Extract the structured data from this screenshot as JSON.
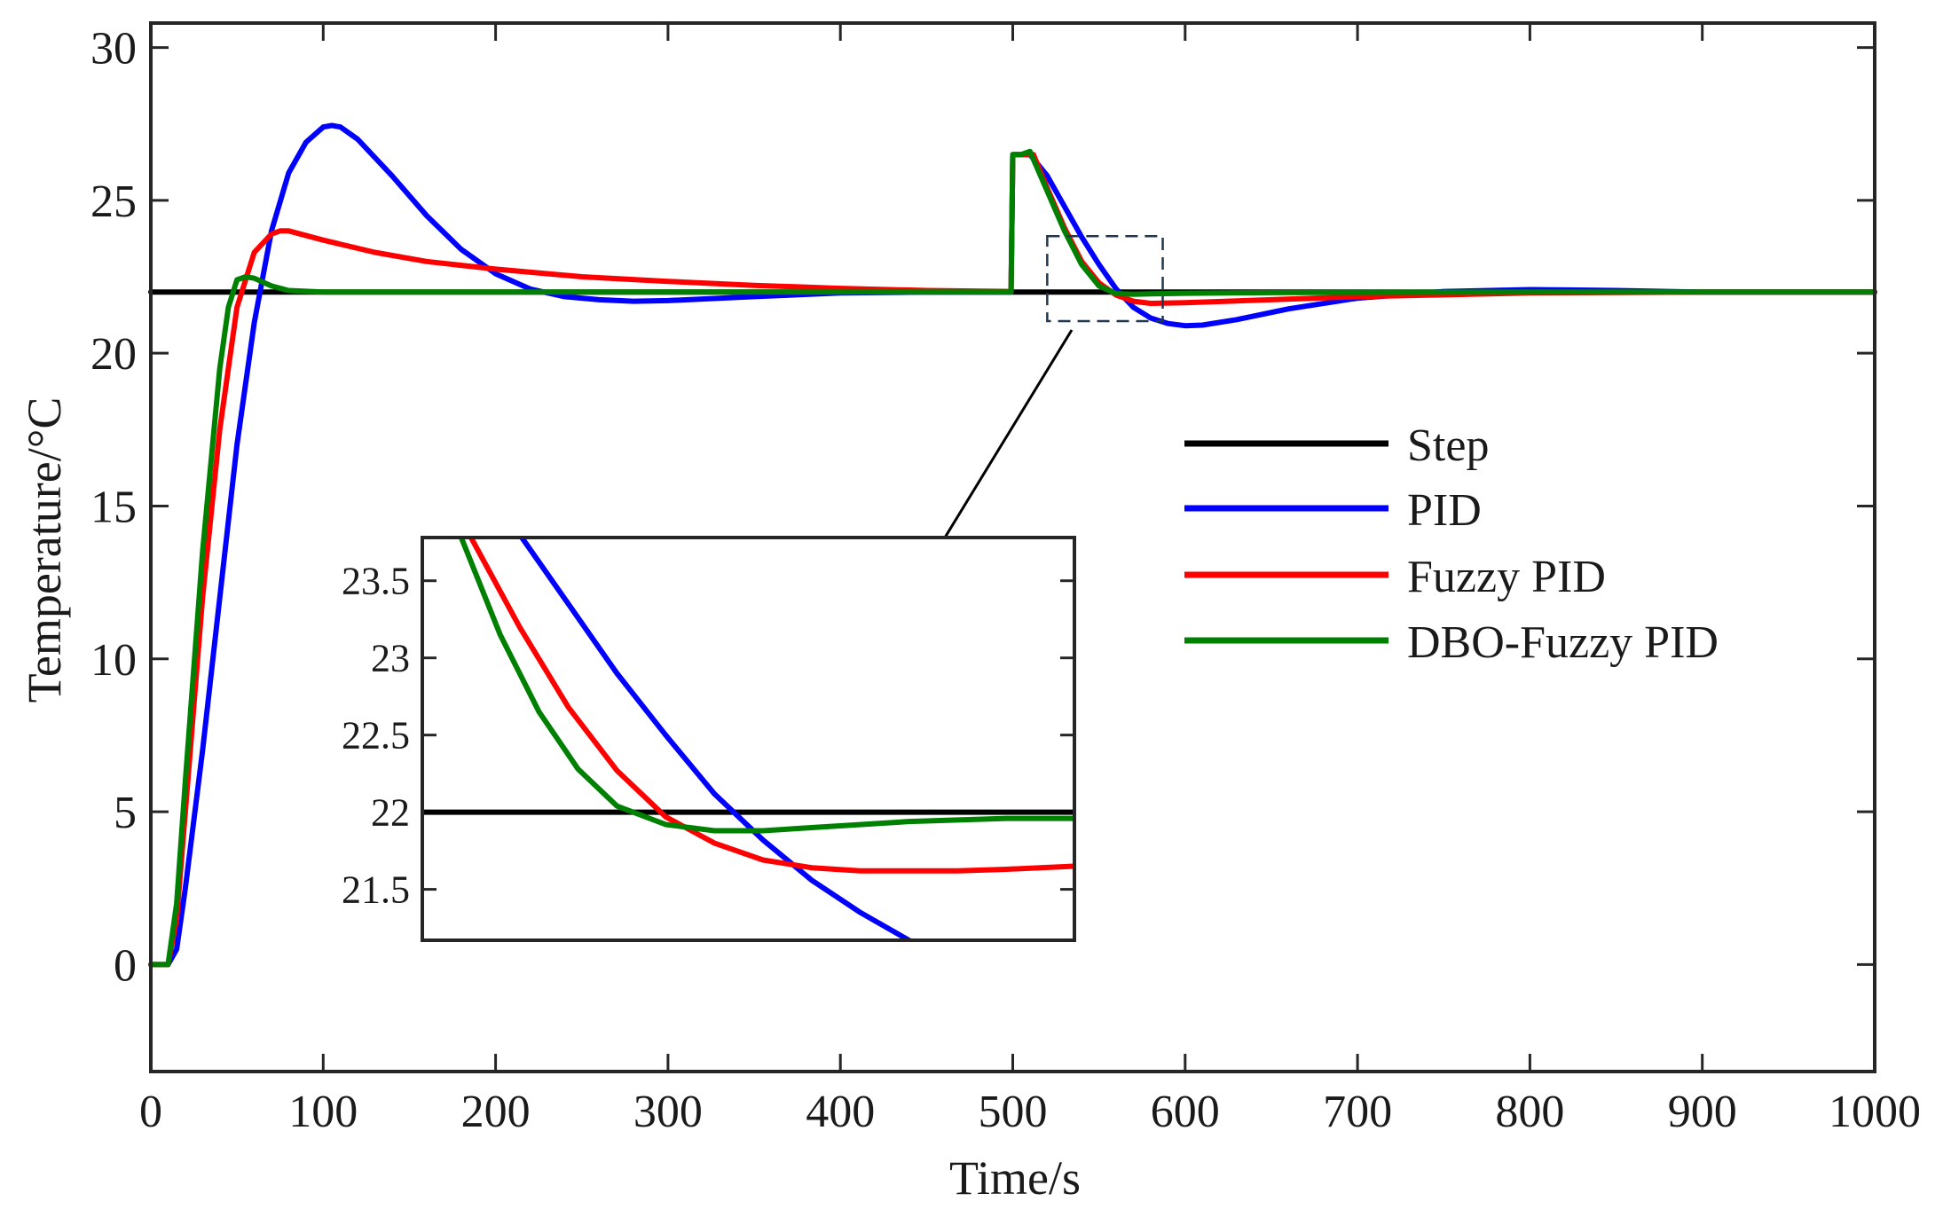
{
  "chart_data": {
    "type": "line",
    "xlabel": "Time/s",
    "ylabel": "Temperature/°C",
    "xlim": [
      0,
      1000
    ],
    "ylim": [
      -3.5,
      30.8
    ],
    "xticks": [
      0,
      100,
      200,
      300,
      400,
      500,
      600,
      700,
      800,
      900,
      1000
    ],
    "yticks": [
      0,
      5,
      10,
      15,
      20,
      25,
      30
    ],
    "legend_position": "center-right",
    "series": [
      {
        "name": "Step",
        "color": "#000000",
        "points": [
          [
            0,
            22
          ],
          [
            1000,
            22
          ]
        ]
      },
      {
        "name": "PID",
        "color": "#0000ff",
        "points": [
          [
            0,
            0
          ],
          [
            10,
            0
          ],
          [
            15,
            0.5
          ],
          [
            20,
            2.5
          ],
          [
            30,
            7
          ],
          [
            40,
            12
          ],
          [
            50,
            17
          ],
          [
            60,
            21
          ],
          [
            70,
            24
          ],
          [
            80,
            25.9
          ],
          [
            90,
            26.9
          ],
          [
            100,
            27.4
          ],
          [
            105,
            27.45
          ],
          [
            110,
            27.4
          ],
          [
            120,
            27
          ],
          [
            140,
            25.8
          ],
          [
            160,
            24.5
          ],
          [
            180,
            23.4
          ],
          [
            200,
            22.6
          ],
          [
            220,
            22.1
          ],
          [
            240,
            21.85
          ],
          [
            260,
            21.75
          ],
          [
            280,
            21.7
          ],
          [
            300,
            21.72
          ],
          [
            350,
            21.85
          ],
          [
            400,
            21.97
          ],
          [
            450,
            22
          ],
          [
            499,
            22
          ],
          [
            500,
            26.5
          ],
          [
            510,
            26.5
          ],
          [
            520,
            25.8
          ],
          [
            530,
            24.8
          ],
          [
            540,
            23.8
          ],
          [
            550,
            22.9
          ],
          [
            560,
            22.1
          ],
          [
            570,
            21.5
          ],
          [
            580,
            21.15
          ],
          [
            590,
            20.97
          ],
          [
            600,
            20.9
          ],
          [
            610,
            20.92
          ],
          [
            630,
            21.1
          ],
          [
            660,
            21.45
          ],
          [
            700,
            21.8
          ],
          [
            750,
            22.02
          ],
          [
            800,
            22.08
          ],
          [
            850,
            22.05
          ],
          [
            900,
            22
          ],
          [
            1000,
            22
          ]
        ]
      },
      {
        "name": "Fuzzy PID",
        "color": "#ff0000",
        "points": [
          [
            0,
            0
          ],
          [
            10,
            0
          ],
          [
            15,
            1.5
          ],
          [
            20,
            5
          ],
          [
            30,
            12
          ],
          [
            40,
            17.5
          ],
          [
            50,
            21.5
          ],
          [
            60,
            23.3
          ],
          [
            70,
            23.9
          ],
          [
            75,
            24
          ],
          [
            80,
            24
          ],
          [
            100,
            23.7
          ],
          [
            130,
            23.3
          ],
          [
            160,
            23
          ],
          [
            200,
            22.75
          ],
          [
            250,
            22.5
          ],
          [
            300,
            22.35
          ],
          [
            350,
            22.22
          ],
          [
            400,
            22.12
          ],
          [
            450,
            22.05
          ],
          [
            499,
            22.02
          ],
          [
            500,
            26.5
          ],
          [
            512,
            26.5
          ],
          [
            520,
            25.4
          ],
          [
            530,
            24.1
          ],
          [
            540,
            23
          ],
          [
            550,
            22.3
          ],
          [
            560,
            21.9
          ],
          [
            570,
            21.7
          ],
          [
            580,
            21.63
          ],
          [
            600,
            21.65
          ],
          [
            650,
            21.75
          ],
          [
            700,
            21.85
          ],
          [
            800,
            21.97
          ],
          [
            900,
            22
          ],
          [
            1000,
            22
          ]
        ]
      },
      {
        "name": "DBO-Fuzzy PID",
        "color": "#008000",
        "points": [
          [
            0,
            0
          ],
          [
            10,
            0
          ],
          [
            15,
            2
          ],
          [
            20,
            6
          ],
          [
            30,
            13.5
          ],
          [
            40,
            19.5
          ],
          [
            45,
            21.5
          ],
          [
            50,
            22.4
          ],
          [
            55,
            22.5
          ],
          [
            60,
            22.45
          ],
          [
            70,
            22.2
          ],
          [
            80,
            22.05
          ],
          [
            100,
            22
          ],
          [
            200,
            22
          ],
          [
            300,
            22
          ],
          [
            400,
            22
          ],
          [
            499,
            22
          ],
          [
            500,
            26.5
          ],
          [
            505,
            26.5
          ],
          [
            510,
            26.6
          ],
          [
            520,
            25.3
          ],
          [
            530,
            24
          ],
          [
            540,
            22.9
          ],
          [
            550,
            22.2
          ],
          [
            560,
            21.95
          ],
          [
            570,
            21.93
          ],
          [
            580,
            21.94
          ],
          [
            600,
            21.96
          ],
          [
            650,
            21.98
          ],
          [
            700,
            21.99
          ],
          [
            800,
            22
          ],
          [
            1000,
            22
          ]
        ]
      }
    ],
    "inset": {
      "xlim": [
        520,
        587
      ],
      "ylim": [
        21.17,
        23.78
      ],
      "yticks": [
        21.5,
        22,
        22.5,
        23,
        23.5
      ],
      "ytick_labels": [
        "21.5",
        "22",
        "22.5",
        "23",
        "23.5"
      ],
      "series": [
        {
          "name": "Step",
          "color": "#000000",
          "points": [
            [
              520,
              22
            ],
            [
              587,
              22
            ]
          ]
        },
        {
          "name": "PID",
          "color": "#0000ff",
          "points": [
            [
              530,
              23.8
            ],
            [
              535,
              23.35
            ],
            [
              540,
              22.9
            ],
            [
              545,
              22.5
            ],
            [
              550,
              22.12
            ],
            [
              555,
              21.82
            ],
            [
              560,
              21.56
            ],
            [
              565,
              21.35
            ],
            [
              570,
              21.17
            ]
          ]
        },
        {
          "name": "Fuzzy PID",
          "color": "#ff0000",
          "points": [
            [
              525,
              23.78
            ],
            [
              530,
              23.2
            ],
            [
              535,
              22.68
            ],
            [
              540,
              22.27
            ],
            [
              545,
              21.97
            ],
            [
              550,
              21.8
            ],
            [
              555,
              21.69
            ],
            [
              560,
              21.64
            ],
            [
              565,
              21.62
            ],
            [
              570,
              21.62
            ],
            [
              575,
              21.62
            ],
            [
              580,
              21.63
            ],
            [
              587,
              21.65
            ]
          ]
        },
        {
          "name": "DBO-Fuzzy PID",
          "color": "#008000",
          "points": [
            [
              524,
              23.78
            ],
            [
              528,
              23.15
            ],
            [
              532,
              22.65
            ],
            [
              536,
              22.28
            ],
            [
              540,
              22.04
            ],
            [
              545,
              21.92
            ],
            [
              550,
              21.88
            ],
            [
              555,
              21.88
            ],
            [
              560,
              21.9
            ],
            [
              570,
              21.94
            ],
            [
              580,
              21.96
            ],
            [
              587,
              21.96
            ]
          ]
        }
      ]
    }
  }
}
